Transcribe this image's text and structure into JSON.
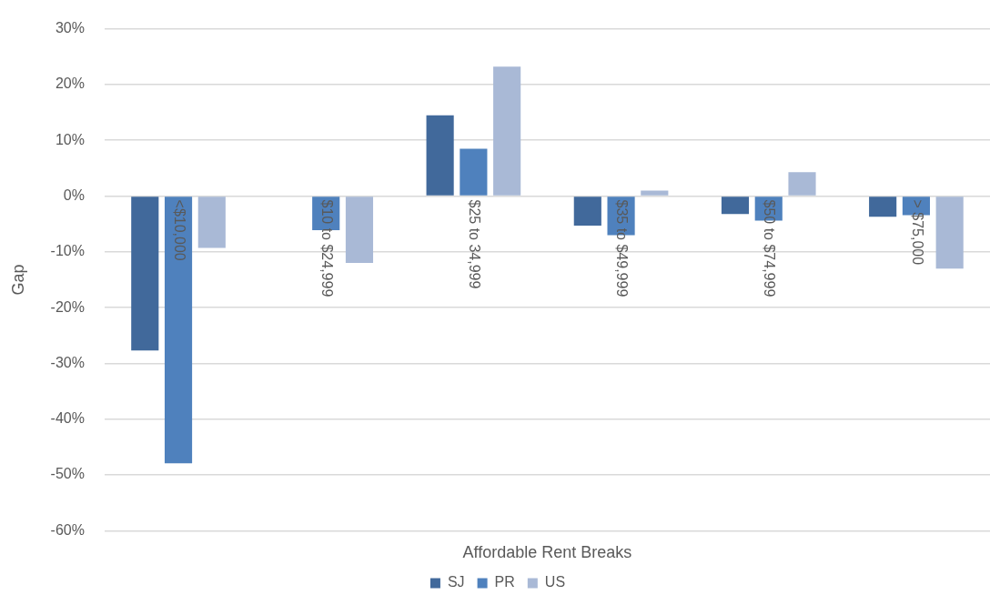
{
  "chart_data": {
    "type": "bar",
    "xlabel": "Affordable Rent Breaks",
    "ylabel": "Gap",
    "categories": [
      "<$10,000",
      "$10 to $24,999",
      "$25 to 34,999",
      "$35 to $49,999",
      "$50 to $74,999",
      "> $75,000"
    ],
    "series": [
      {
        "name": "SJ",
        "color": "#41699b",
        "values": [
          -27.7,
          0,
          14.5,
          -5.3,
          -3.2,
          -3.7
        ]
      },
      {
        "name": "PR",
        "color": "#4f81bd",
        "values": [
          -47.9,
          -6.1,
          8.5,
          -7.0,
          -4.4,
          -3.4
        ]
      },
      {
        "name": "US",
        "color": "#a9b9d6",
        "values": [
          -9.3,
          -12.0,
          23.2,
          1.0,
          4.3,
          -13.0
        ]
      }
    ],
    "ylim": [
      -60,
      30
    ],
    "yticks": [
      {
        "value": -60,
        "label": "-60%"
      },
      {
        "value": -50,
        "label": "-50%"
      },
      {
        "value": -40,
        "label": "-40%"
      },
      {
        "value": -30,
        "label": "-30%"
      },
      {
        "value": -20,
        "label": "-20%"
      },
      {
        "value": -10,
        "label": "-10%"
      },
      {
        "value": 0,
        "label": "0%"
      },
      {
        "value": 10,
        "label": "10%"
      },
      {
        "value": 20,
        "label": "20%"
      },
      {
        "value": 30,
        "label": "30%"
      }
    ],
    "grid": "y",
    "legend": "bottom"
  }
}
